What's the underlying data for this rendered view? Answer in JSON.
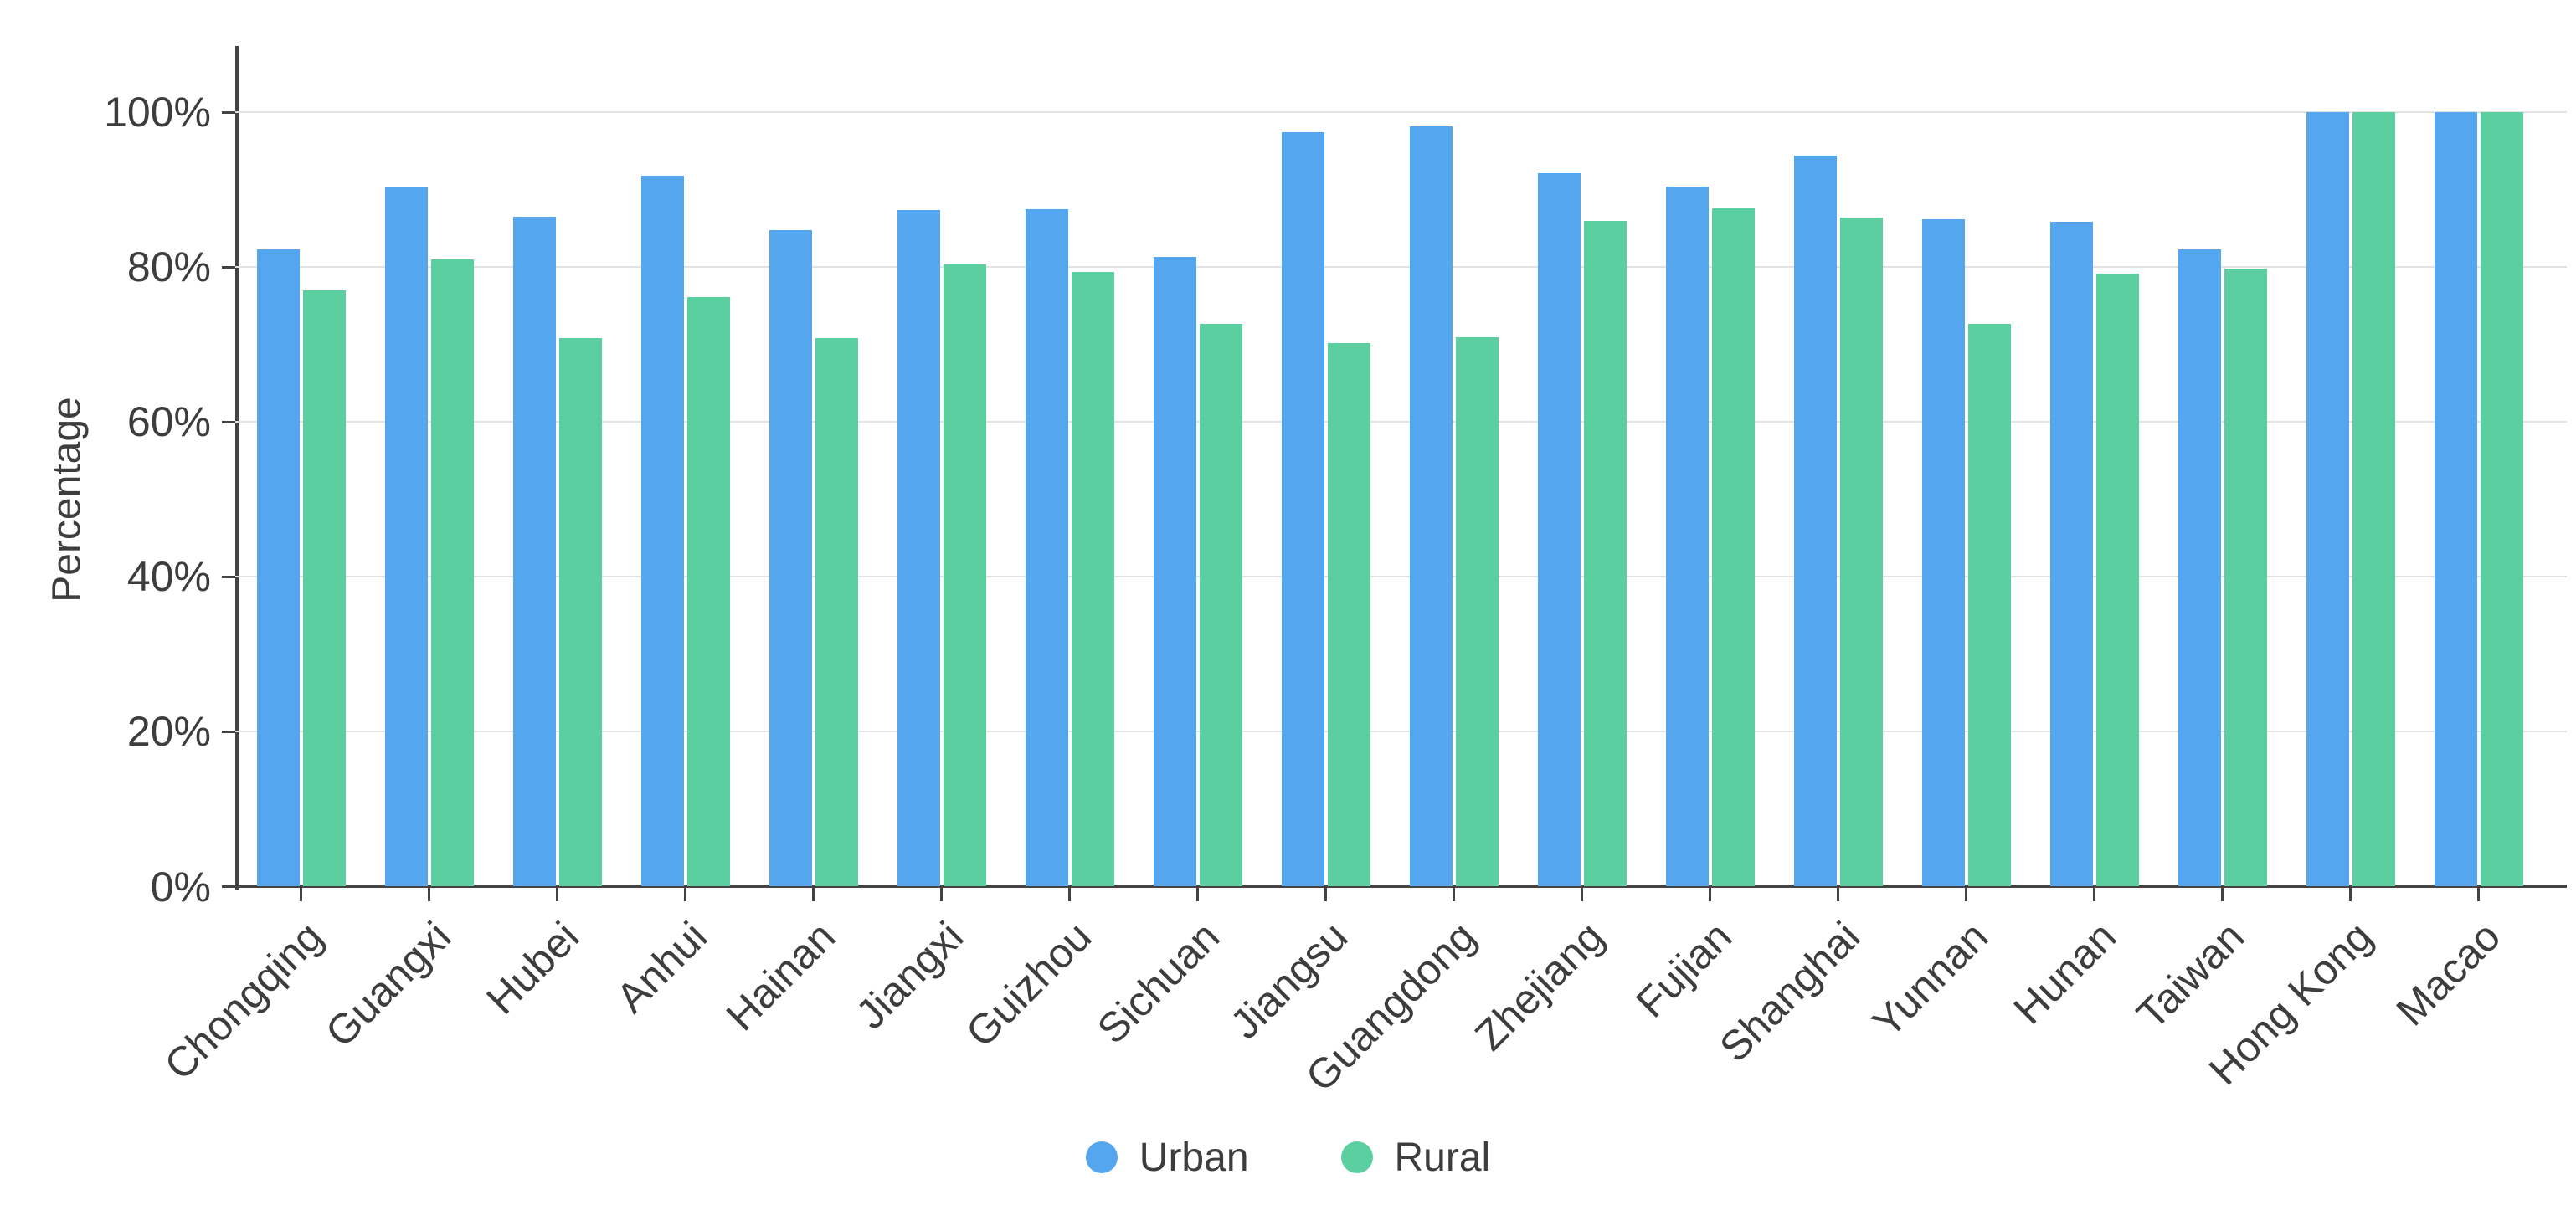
{
  "chart_data": {
    "type": "bar",
    "title": "",
    "xlabel": "",
    "ylabel": "Percentage",
    "categories": [
      "Chongqing",
      "Guangxi",
      "Hubei",
      "Anhui",
      "Hainan",
      "Jiangxi",
      "Guizhou",
      "Sichuan",
      "Jiangsu",
      "Guangdong",
      "Zhejiang",
      "Fujian",
      "Shanghai",
      "Yunnan",
      "Hunan",
      "Taiwan",
      "Hong Kong",
      "Macao"
    ],
    "series": [
      {
        "name": "Urban",
        "color": "#54a6ee",
        "values": [
          82.3,
          90.3,
          86.5,
          91.8,
          84.8,
          87.3,
          87.5,
          81.3,
          97.4,
          98.2,
          92.1,
          90.4,
          94.4,
          86.2,
          85.8,
          82.3,
          100,
          100
        ]
      },
      {
        "name": "Rural",
        "color": "#5ccfa1",
        "values": [
          77.0,
          81.0,
          70.8,
          76.1,
          70.8,
          80.3,
          79.4,
          72.6,
          70.2,
          70.9,
          86.0,
          87.6,
          86.4,
          72.6,
          79.1,
          79.8,
          100,
          100
        ]
      }
    ],
    "y_tick_labels": [
      "0%",
      "20%",
      "40%",
      "60%",
      "80%",
      "100%"
    ],
    "y_tick_values": [
      0,
      20,
      40,
      60,
      80,
      100
    ],
    "ylim": [
      0,
      110
    ],
    "grid": true,
    "legend_position": "bottom",
    "colors": {
      "axis": "#434343",
      "gridline": "#e3e3e3",
      "text": "#3d3d3d",
      "background": "#ffffff"
    }
  }
}
